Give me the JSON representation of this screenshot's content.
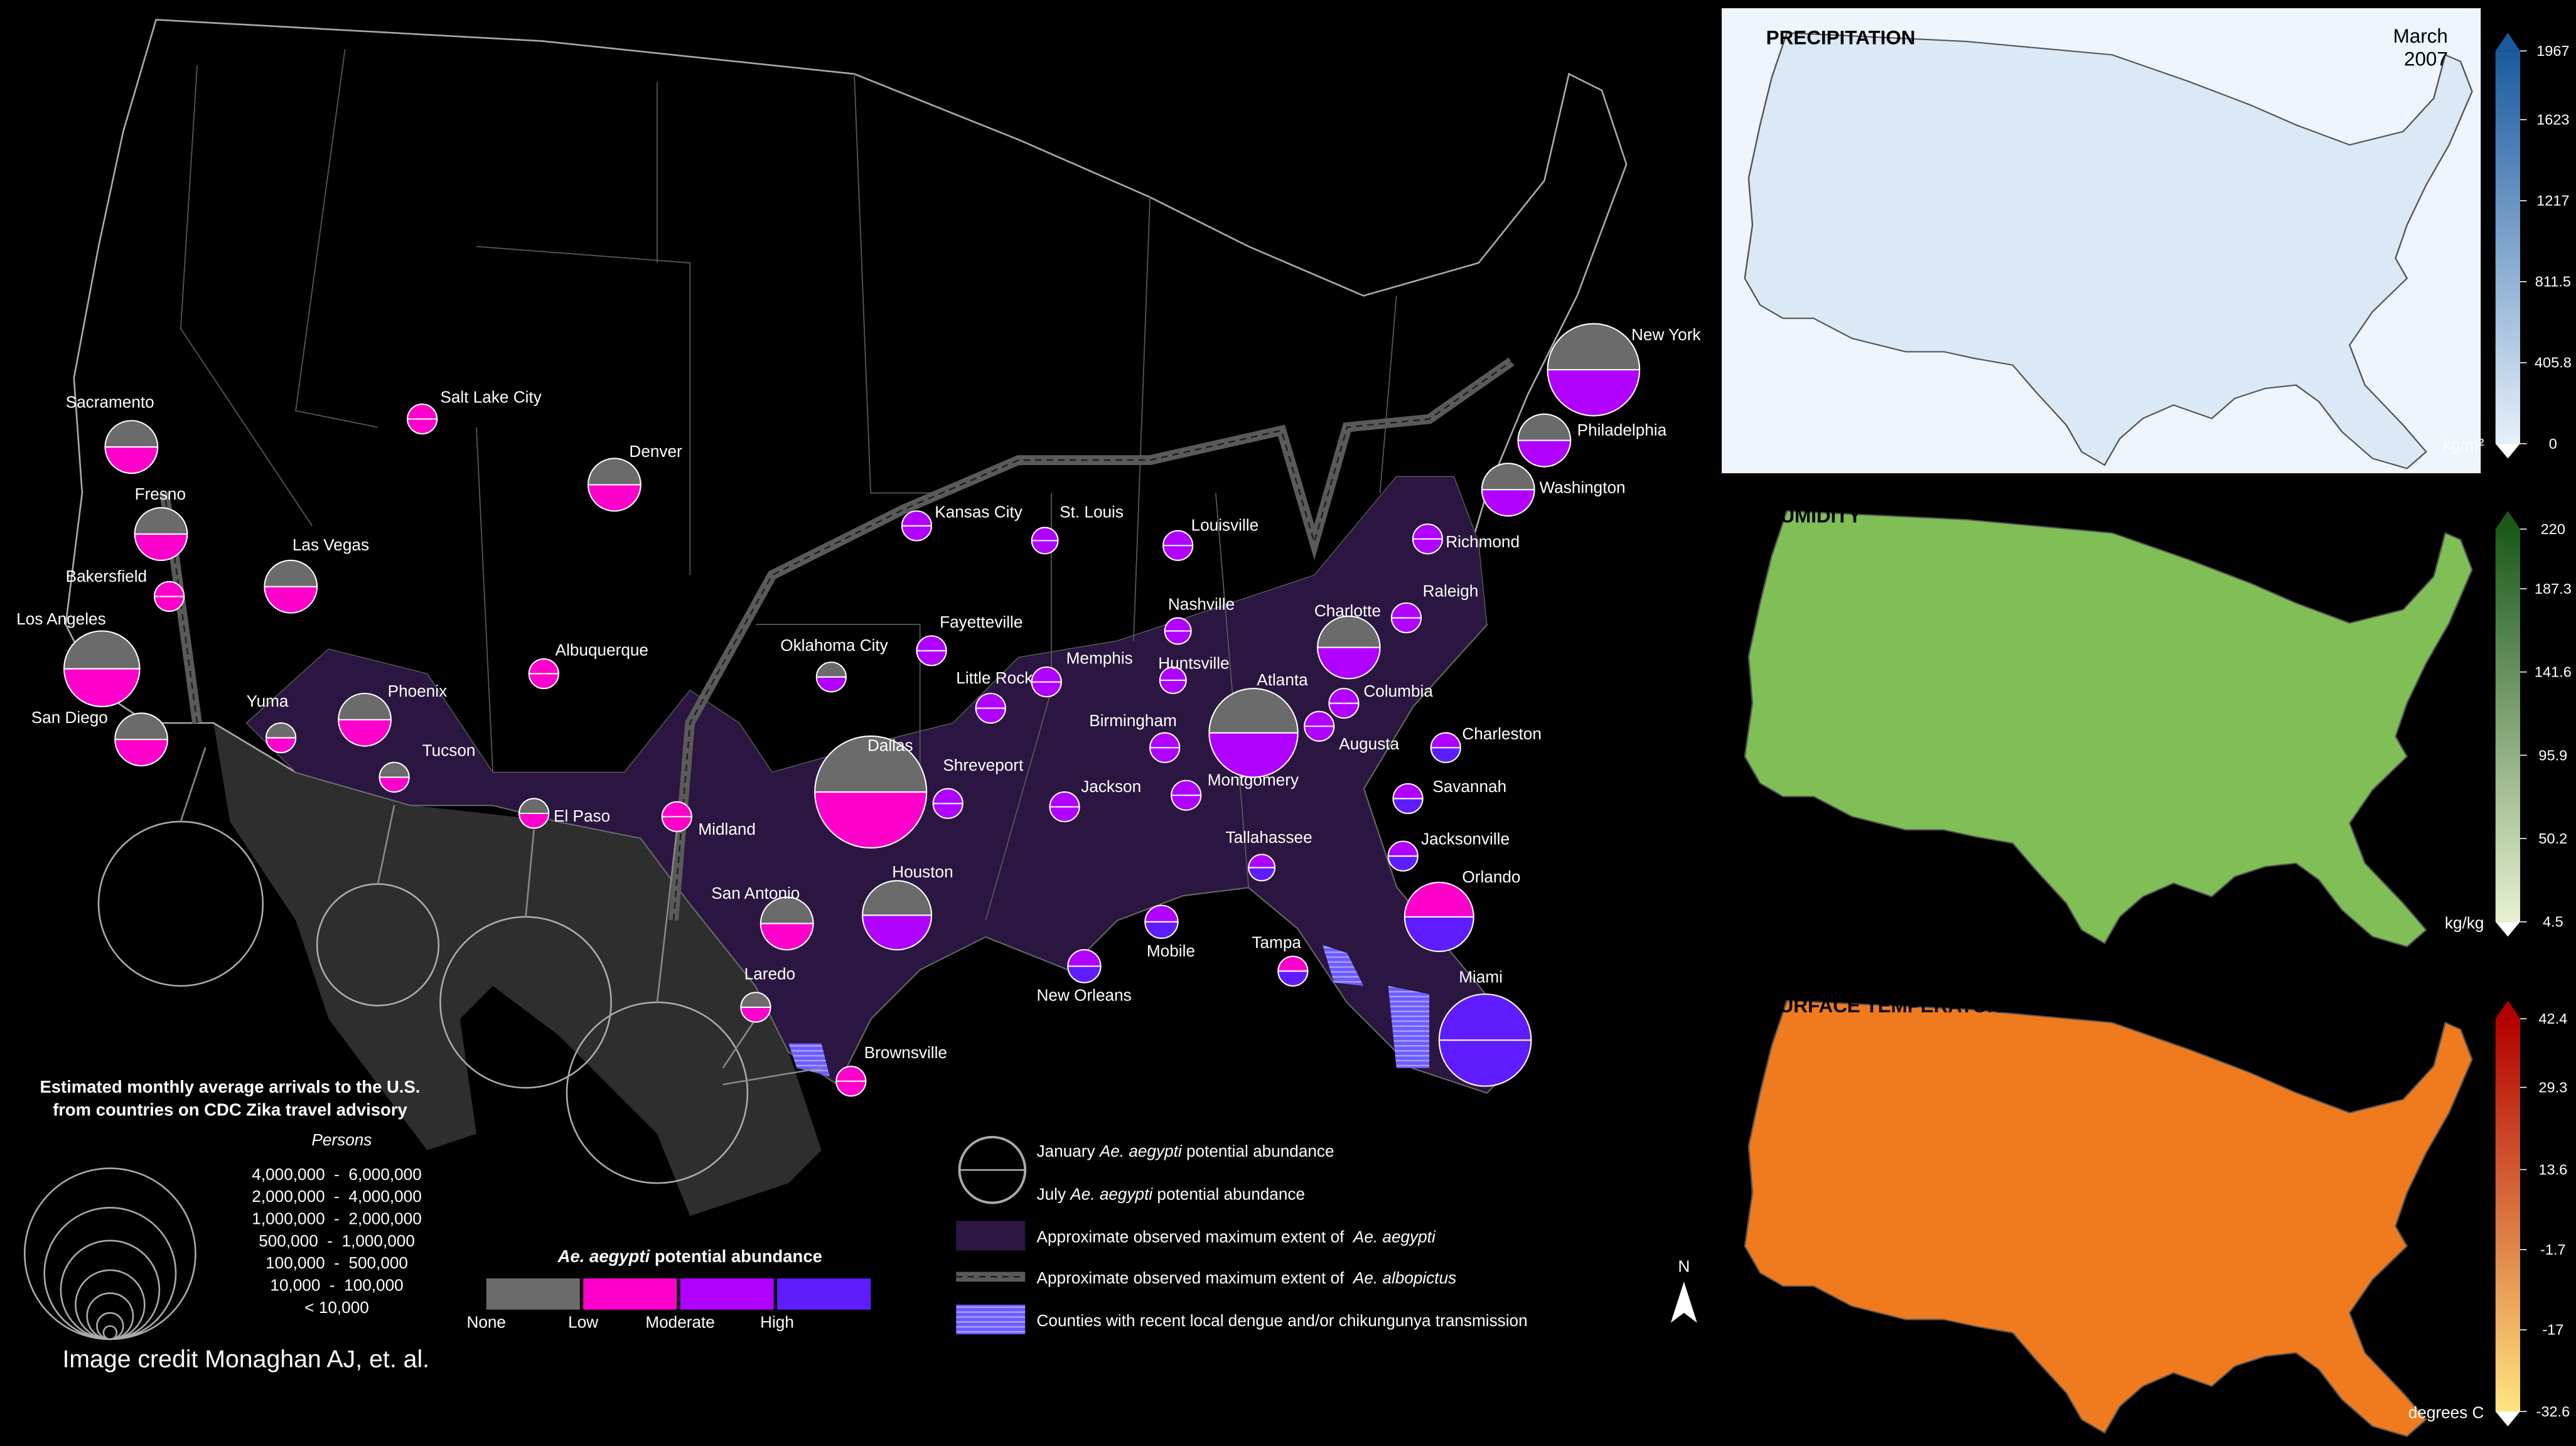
{
  "map": {
    "cities": [
      {
        "name": "New York",
        "january": "None",
        "july": "Moderate"
      },
      {
        "name": "Philadelphia",
        "january": "None",
        "july": "Moderate"
      },
      {
        "name": "Washington",
        "january": "None",
        "july": "Moderate"
      },
      {
        "name": "Richmond",
        "january": "Moderate",
        "july": "Moderate"
      },
      {
        "name": "Raleigh",
        "january": "Moderate",
        "july": "Moderate"
      },
      {
        "name": "Charlotte",
        "january": "None",
        "july": "Moderate"
      },
      {
        "name": "Columbia",
        "january": "Moderate",
        "july": "Moderate"
      },
      {
        "name": "Charleston",
        "january": "Moderate",
        "july": "High"
      },
      {
        "name": "Augusta",
        "january": "Moderate",
        "july": "Moderate"
      },
      {
        "name": "Savannah",
        "january": "Moderate",
        "july": "High"
      },
      {
        "name": "Jacksonville",
        "january": "Moderate",
        "july": "High"
      },
      {
        "name": "Orlando",
        "january": "Low",
        "july": "High"
      },
      {
        "name": "Tampa",
        "january": "Low",
        "july": "High"
      },
      {
        "name": "Miami",
        "january": "High",
        "july": "High"
      },
      {
        "name": "Tallahassee",
        "january": "Moderate",
        "july": "High"
      },
      {
        "name": "Atlanta",
        "january": "None",
        "july": "Moderate"
      },
      {
        "name": "Nashville",
        "january": "Moderate",
        "july": "Moderate"
      },
      {
        "name": "Louisville",
        "january": "Moderate",
        "july": "Moderate"
      },
      {
        "name": "Huntsville",
        "january": "Moderate",
        "july": "Moderate"
      },
      {
        "name": "Birmingham",
        "january": "Moderate",
        "july": "Moderate"
      },
      {
        "name": "Montgomery",
        "january": "Moderate",
        "july": "Moderate"
      },
      {
        "name": "Mobile",
        "january": "Moderate",
        "july": "High"
      },
      {
        "name": "New Orleans",
        "january": "Moderate",
        "july": "High"
      },
      {
        "name": "Jackson",
        "january": "Moderate",
        "july": "Moderate"
      },
      {
        "name": "Memphis",
        "january": "Moderate",
        "july": "Moderate"
      },
      {
        "name": "Little Rock",
        "january": "Moderate",
        "july": "Moderate"
      },
      {
        "name": "St. Louis",
        "january": "Moderate",
        "july": "Moderate"
      },
      {
        "name": "Kansas City",
        "january": "Moderate",
        "july": "Moderate"
      },
      {
        "name": "Fayetteville",
        "january": "Moderate",
        "july": "Moderate"
      },
      {
        "name": "Oklahoma City",
        "january": "None",
        "july": "Moderate"
      },
      {
        "name": "Shreveport",
        "january": "Moderate",
        "july": "Moderate"
      },
      {
        "name": "Dallas",
        "january": "None",
        "july": "Low"
      },
      {
        "name": "Houston",
        "january": "None",
        "july": "Moderate"
      },
      {
        "name": "San Antonio",
        "january": "None",
        "july": "Low"
      },
      {
        "name": "Laredo",
        "january": "None",
        "july": "Low"
      },
      {
        "name": "Brownsville",
        "january": "Low",
        "july": "Low"
      },
      {
        "name": "Midland",
        "january": "Low",
        "july": "Low"
      },
      {
        "name": "El Paso",
        "january": "None",
        "july": "Low"
      },
      {
        "name": "Tucson",
        "january": "None",
        "july": "Low"
      },
      {
        "name": "Phoenix",
        "january": "None",
        "july": "Low"
      },
      {
        "name": "Yuma",
        "january": "None",
        "july": "Low"
      },
      {
        "name": "San Diego",
        "january": "None",
        "july": "Low"
      },
      {
        "name": "Los Angeles",
        "january": "None",
        "july": "Low"
      },
      {
        "name": "Bakersfield",
        "january": "Low",
        "july": "Low"
      },
      {
        "name": "Fresno",
        "january": "None",
        "july": "Low"
      },
      {
        "name": "Sacramento",
        "january": "None",
        "july": "Low"
      },
      {
        "name": "Salt Lake City",
        "january": "Low",
        "july": "Low"
      },
      {
        "name": "Las Vegas",
        "january": "None",
        "july": "Low"
      },
      {
        "name": "Denver",
        "january": "None",
        "july": "Low"
      },
      {
        "name": "Albuquerque",
        "january": "Low",
        "july": "Low"
      }
    ],
    "arrivals_legend": {
      "title": [
        "Estimated monthly average arrivals to the U.S.",
        "from countries on CDC Zika travel advisory"
      ],
      "unit": "Persons",
      "ranges": [
        "4,000,000  -  6,000,000",
        "2,000,000  -  4,000,000",
        "1,000,000  -  2,000,000",
        "500,000  -  1,000,000",
        "100,000  -  500,000",
        "10,000  -  100,000",
        "< 10,000"
      ]
    },
    "abundance_legend": {
      "title": [
        "Ae. aegypti",
        " potential abundance"
      ],
      "levels": [
        {
          "label": "None",
          "color": "#6b6b6b"
        },
        {
          "label": "Low",
          "color": "#ff00cc"
        },
        {
          "label": "Moderate",
          "color": "#b000ff"
        },
        {
          "label": "High",
          "color": "#5f1dff"
        }
      ]
    },
    "key": [
      [
        "January ",
        "Ae. aegypti",
        " potential abundance"
      ],
      [
        "July ",
        "Ae. aegypti",
        " potential abundance"
      ],
      [
        "Approximate observed maximum extent of  ",
        "Ae. aegypti",
        ""
      ],
      [
        "Approximate observed maximum extent of  ",
        "Ae. albopictus",
        ""
      ],
      [
        "Counties with recent local dengue and/or chikungunya transmission",
        "",
        ""
      ]
    ],
    "north": "N",
    "credit": "Image credit Monaghan AJ, et. al."
  },
  "panels": [
    {
      "title": "PRECIPITATION",
      "date": [
        "March",
        "2007"
      ],
      "unit": "kg/m²",
      "lim": [
        0,
        1967
      ],
      "ticks": [
        1967,
        1623,
        1217,
        811.5,
        405.8,
        0
      ],
      "colors": [
        "#1a5a9e",
        "#e6f1fb"
      ],
      "land": "#dbe9f6"
    },
    {
      "title": "HUMIDITY",
      "unit": "kg/kg",
      "lim": [
        4.5,
        220
      ],
      "ticks": [
        220,
        187.3,
        141.6,
        95.9,
        50.2,
        4.5
      ],
      "colors": [
        "#1c5a1c",
        "#e8f1d0"
      ],
      "land": "#7fbf55"
    },
    {
      "title": "SURFACE TEMPERATURE",
      "unit": "degrees C",
      "lim": [
        -32.6,
        42.4
      ],
      "ticks": [
        42.4,
        29.3,
        13.6,
        -1.7,
        -17,
        -32.6
      ],
      "colors": [
        "#b30000",
        "#ffe680"
      ],
      "land": "#f07a1e"
    }
  ]
}
